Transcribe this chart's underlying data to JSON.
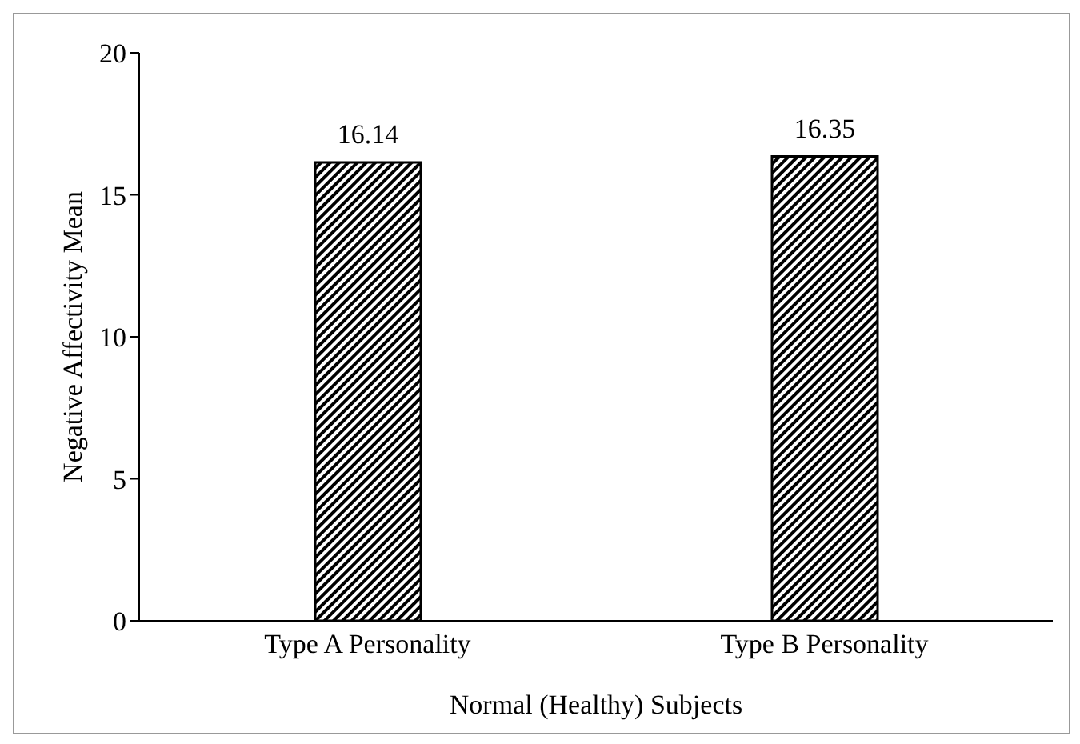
{
  "chart_data": {
    "type": "bar",
    "xlabel": "Normal (Healthy) Subjects",
    "ylabel": "Negative Affectivity Mean",
    "categories": [
      "Type A Personality",
      "Type B Personality"
    ],
    "values": [
      16.14,
      16.35
    ],
    "color": "#000000",
    "ylim": [
      0,
      20
    ],
    "yticks": [
      0,
      5,
      10,
      15,
      20
    ],
    "grid": false,
    "data_labels": true
  }
}
